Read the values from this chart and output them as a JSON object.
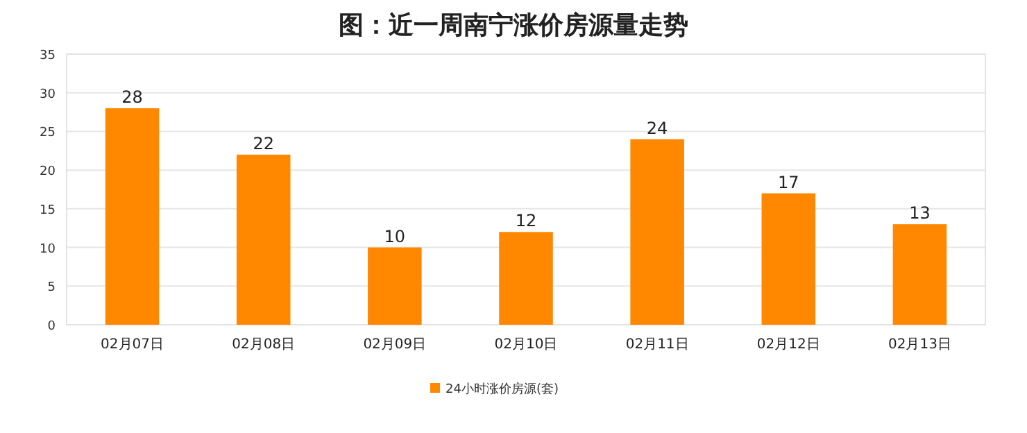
{
  "chart_data": {
    "type": "bar",
    "title": "图：近一周南宁涨价房源量走势",
    "categories": [
      "02月07日",
      "02月08日",
      "02月09日",
      "02月10日",
      "02月11日",
      "02月12日",
      "02月13日"
    ],
    "series": [
      {
        "name": "24小时涨价房源(套)",
        "color": "#ff8800",
        "values": [
          28,
          22,
          10,
          12,
          24,
          17,
          13
        ]
      }
    ],
    "ylim": [
      0,
      35
    ],
    "yticks": [
      0,
      5,
      10,
      15,
      20,
      25,
      30,
      35
    ],
    "grid": "y",
    "legend": "bottom",
    "data_labels": true
  }
}
